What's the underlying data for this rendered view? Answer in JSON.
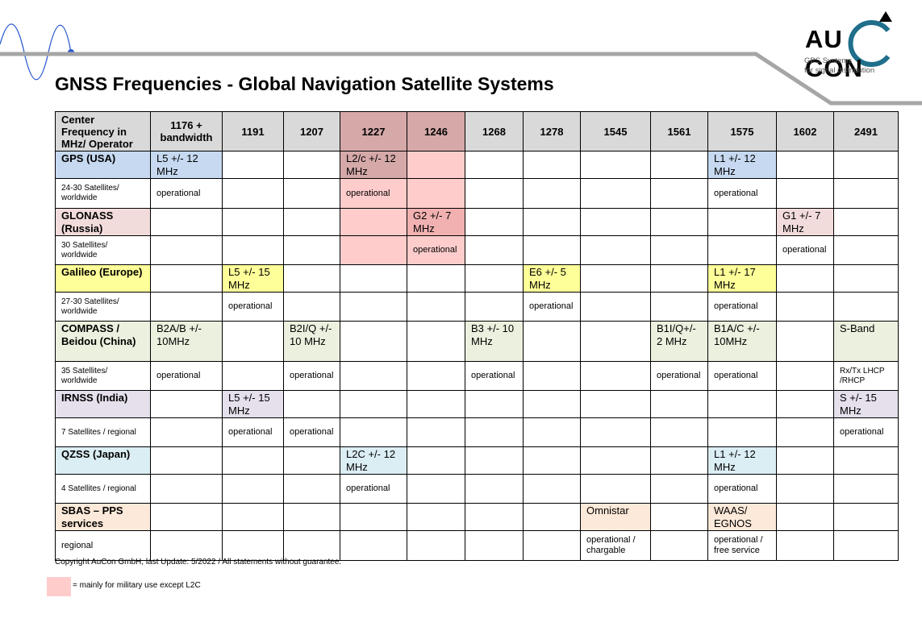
{
  "title": "GNSS Frequencies - Global Navigation Satellite Systems",
  "logo": {
    "word": "AU CON",
    "tagline_1": "GPS Systems",
    "tagline_2": "for signal distribution"
  },
  "colors": {
    "military_band": "#ffcccc",
    "header": "#d9d9d9",
    "gps": "#c6d9f0",
    "glonass": "#f2dcdb",
    "galileo": "#ffff99",
    "compass": "#ebf1de",
    "irnss": "#e5e0ec",
    "qzss": "#dbeef3",
    "sbas": "#fde9d9"
  },
  "table": {
    "corner_header": "Center Frequency in MHz/ Operator",
    "frequencies": [
      "1176 + bandwidth",
      "1191",
      "1207",
      "1227",
      "1246",
      "1268",
      "1278",
      "1545",
      "1561",
      "1575",
      "1602",
      "2491"
    ],
    "systems": [
      {
        "name": "GPS (USA)",
        "detail": "24-30 Satellites/ worldwide",
        "signals": [
          "L5 +/- 12 MHz",
          "",
          "",
          "L2/c +/- 12 MHz",
          "",
          "",
          "",
          "",
          "",
          "L1 +/- 12 MHz",
          "",
          ""
        ],
        "status": [
          "operational",
          "",
          "",
          "operational",
          "",
          "",
          "",
          "",
          "",
          "operational",
          "",
          ""
        ]
      },
      {
        "name": "GLONASS (Russia)",
        "detail": "30 Satellites/ worldwide",
        "signals": [
          "",
          "",
          "",
          "",
          "G2 +/- 7 MHz",
          "",
          "",
          "",
          "",
          "",
          "G1 +/- 7 MHz",
          ""
        ],
        "status": [
          "",
          "",
          "",
          "",
          "operational",
          "",
          "",
          "",
          "",
          "",
          "operational",
          ""
        ]
      },
      {
        "name": "Galileo (Europe)",
        "detail": "27-30 Satellites/ worldwide",
        "signals": [
          "",
          "L5 +/- 15 MHz",
          "",
          "",
          "",
          "",
          "E6 +/- 5 MHz",
          "",
          "",
          "L1 +/- 17 MHz",
          "",
          ""
        ],
        "status": [
          "",
          "operational",
          "",
          "",
          "",
          "",
          "operational",
          "",
          "",
          "operational",
          "",
          ""
        ]
      },
      {
        "name": "COMPASS / Beidou (China)",
        "detail": "35 Satellites/ worldwide",
        "signals": [
          "B2A/B +/- 10MHz",
          "",
          "B2I/Q +/- 10 MHz",
          "",
          "",
          "B3 +/- 10 MHz",
          "",
          "",
          "B1I/Q+/- 2 MHz",
          "B1A/C +/- 10MHz",
          "",
          "S-Band"
        ],
        "status": [
          "operational",
          "",
          "operational",
          "",
          "",
          "operational",
          "",
          "",
          "operational",
          "operational",
          "",
          "Rx/Tx LHCP /RHCP"
        ]
      },
      {
        "name": "IRNSS (India)",
        "detail": "7 Satellites / regional",
        "signals": [
          "",
          "L5 +/- 15 MHz",
          "",
          "",
          "",
          "",
          "",
          "",
          "",
          "",
          "",
          "S +/- 15 MHz"
        ],
        "status": [
          "",
          "operational",
          "operational",
          "",
          "",
          "",
          "",
          "",
          "",
          "",
          "",
          "operational"
        ]
      },
      {
        "name": "QZSS (Japan)",
        "detail": "4 Satellites / regional",
        "signals": [
          "",
          "",
          "",
          "L2C +/- 12 MHz",
          "",
          "",
          "",
          "",
          "",
          "L1 +/- 12 MHz",
          "",
          ""
        ],
        "status": [
          "",
          "",
          "",
          "operational",
          "",
          "",
          "",
          "",
          "",
          "operational",
          "",
          ""
        ]
      },
      {
        "name": "SBAS – PPS services",
        "detail": "regional",
        "signals": [
          "",
          "",
          "",
          "",
          "",
          "",
          "",
          "Omnistar",
          "",
          "WAAS/ EGNOS",
          "",
          ""
        ],
        "status": [
          "",
          "",
          "",
          "",
          "",
          "",
          "",
          "operational / chargable",
          "",
          "operational / free service",
          "",
          ""
        ]
      }
    ]
  },
  "footer": {
    "copyright": "Copyright AuCon GmbH, last Update: 5/2022 / All statements without guarantee.",
    "legend": "= mainly for military use except L2C"
  }
}
